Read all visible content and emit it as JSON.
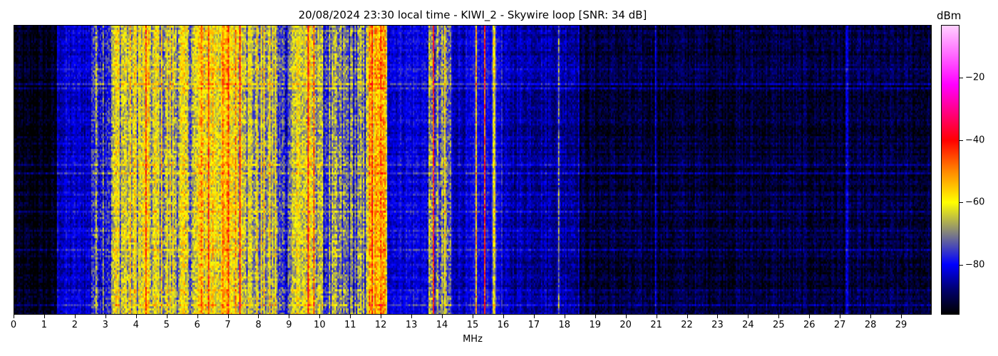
{
  "chart_data": {
    "type": "heatmap",
    "title": "20/08/2024 23:30 local time - KIWI_2 - Skywire loop [SNR: 34 dB]",
    "xlabel": "MHz",
    "ylabel": "",
    "xlim": [
      0,
      30
    ],
    "x_ticks": [
      "0",
      "1",
      "2",
      "3",
      "4",
      "5",
      "6",
      "7",
      "8",
      "9",
      "10",
      "11",
      "12",
      "13",
      "14",
      "15",
      "16",
      "17",
      "18",
      "19",
      "20",
      "21",
      "22",
      "23",
      "24",
      "25",
      "26",
      "27",
      "28",
      "29"
    ],
    "colorbar": {
      "label": "dBm",
      "range": [
        -96,
        -3
      ],
      "ticks": [
        -20,
        -40,
        -60,
        -80
      ],
      "tick_labels": [
        "−20",
        "−40",
        "−60",
        "−80"
      ],
      "colormap": [
        {
          "value": -96,
          "color": "#000000"
        },
        {
          "value": -88,
          "color": "#000070"
        },
        {
          "value": -80,
          "color": "#0000ff"
        },
        {
          "value": -70,
          "color": "#808080"
        },
        {
          "value": -60,
          "color": "#ffff00"
        },
        {
          "value": -50,
          "color": "#ff8800"
        },
        {
          "value": -40,
          "color": "#ff0000"
        },
        {
          "value": -22,
          "color": "#ff00ff"
        },
        {
          "value": -3,
          "color": "#ffd0ff"
        }
      ]
    },
    "band_levels_dbm": [
      {
        "from": 0,
        "to": 1.4,
        "level": -95
      },
      {
        "from": 1.4,
        "to": 2.5,
        "level": -83
      },
      {
        "from": 2.5,
        "to": 3.2,
        "level": -74
      },
      {
        "from": 3.2,
        "to": 4.2,
        "level": -64
      },
      {
        "from": 4.2,
        "to": 5.5,
        "level": -65
      },
      {
        "from": 5.5,
        "to": 6.0,
        "level": -66
      },
      {
        "from": 6.0,
        "to": 7.6,
        "level": -58
      },
      {
        "from": 7.6,
        "to": 8.6,
        "level": -66
      },
      {
        "from": 8.6,
        "to": 9.0,
        "level": -77
      },
      {
        "from": 9.0,
        "to": 10.0,
        "level": -63
      },
      {
        "from": 10.0,
        "to": 11.5,
        "level": -73
      },
      {
        "from": 11.5,
        "to": 12.2,
        "level": -58
      },
      {
        "from": 12.2,
        "to": 13.5,
        "level": -81
      },
      {
        "from": 13.5,
        "to": 14.3,
        "level": -74
      },
      {
        "from": 14.3,
        "to": 15.0,
        "level": -83
      },
      {
        "from": 15.0,
        "to": 16.0,
        "level": -80
      },
      {
        "from": 16.0,
        "to": 18.5,
        "level": -85
      },
      {
        "from": 18.5,
        "to": 30.0,
        "level": -92
      }
    ],
    "carriers_mhz": [
      {
        "f": 4.3,
        "level": -45
      },
      {
        "f": 6.35,
        "level": -44
      },
      {
        "f": 7.0,
        "level": -46
      },
      {
        "f": 7.4,
        "level": -43
      },
      {
        "f": 9.6,
        "level": -44
      },
      {
        "f": 9.8,
        "level": -48
      },
      {
        "f": 11.7,
        "level": -44
      },
      {
        "f": 12.0,
        "level": -46
      },
      {
        "f": 13.7,
        "level": -42
      },
      {
        "f": 14.1,
        "level": -58
      },
      {
        "f": 15.1,
        "level": -55
      },
      {
        "f": 15.4,
        "level": -44
      },
      {
        "f": 15.7,
        "level": -62
      },
      {
        "f": 17.8,
        "level": -70
      },
      {
        "f": 21.0,
        "level": -82
      },
      {
        "f": 27.25,
        "level": -82
      }
    ]
  }
}
